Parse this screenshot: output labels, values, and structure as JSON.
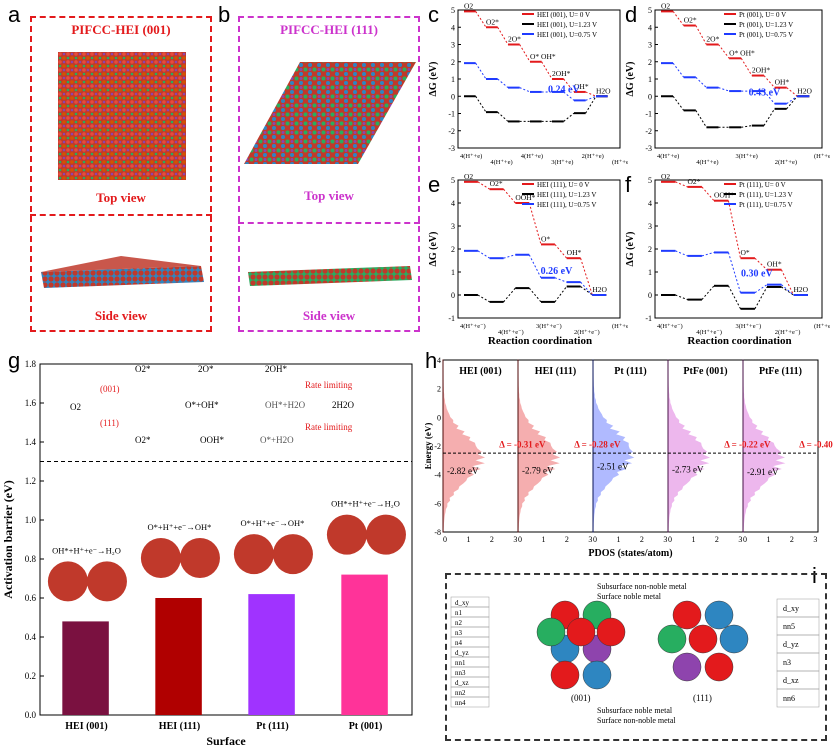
{
  "panel_letters": [
    "a",
    "b",
    "c",
    "d",
    "e",
    "f",
    "g",
    "h",
    "i"
  ],
  "colors": {
    "red": "#e31a1c",
    "magenta": "#cc33cc",
    "blue": "#1f3bff",
    "black": "#000000",
    "hei001": "#7a1140",
    "hei111": "#b00000",
    "pt111": "#a033ff",
    "pt001": "#ff3399"
  },
  "panel_a": {
    "title": "PIFCC-HEI (001)",
    "top": "Top view",
    "side": "Side view"
  },
  "panel_b": {
    "title": "PIFCC-HEI (111)",
    "top": "Top view",
    "side": "Side view"
  },
  "ylabel_dG": "ΔG (eV)",
  "xlabel_rc": "Reaction coordination",
  "chart_data": [
    {
      "id": "c",
      "type": "line",
      "legend": [
        "HEI (001), U= 0 V",
        "HEI (001), U=1.23 V",
        "HEI (001), U=0.75 V"
      ],
      "ylim": [
        -3,
        5
      ],
      "yticks": [
        "-3",
        "-2",
        "-1",
        "0",
        "1",
        "2",
        "3",
        "4",
        "5"
      ],
      "species": [
        "O2",
        "O2*",
        "2O*",
        "O* OH*",
        "2OH*",
        "OH*",
        "H2O"
      ],
      "series": [
        {
          "name": "HEI (001), U= 0 V",
          "values": [
            4.92,
            4.0,
            3.0,
            2.0,
            1.0,
            0.25,
            0.0
          ]
        },
        {
          "name": "HEI (001), U=1.23 V",
          "values": [
            0.0,
            -0.92,
            -1.46,
            -1.46,
            -1.46,
            -0.98,
            0.0
          ]
        },
        {
          "name": "HEI (001), U=0.75 V",
          "values": [
            1.92,
            1.0,
            0.5,
            0.25,
            0.25,
            -0.24,
            0.0
          ]
        }
      ],
      "annotation": "0.24 eV",
      "xticks": [
        "4(H⁺+e)",
        "4(H⁺+e)",
        "4(H⁺+e)",
        "3(H⁺+e)",
        "2(H⁺+e)",
        "(H⁺+e)"
      ]
    },
    {
      "id": "d",
      "type": "line",
      "legend": [
        "Pt (001), U= 0 V",
        "Pt (001), U=1.23 V",
        "Pt (001), U=0.75 V"
      ],
      "ylim": [
        -3,
        5
      ],
      "yticks": [
        "-3",
        "-2",
        "-1",
        "0",
        "1",
        "2",
        "3",
        "4",
        "5"
      ],
      "species": [
        "O2",
        "O2*",
        "2O*",
        "O* OH*",
        "2OH*",
        "OH*",
        "H2O"
      ],
      "series": [
        {
          "name": "Pt (001), U= 0 V",
          "values": [
            4.92,
            4.1,
            3.0,
            2.2,
            1.2,
            0.5,
            0.0
          ]
        },
        {
          "name": "Pt (001), U=1.23 V",
          "values": [
            0.0,
            -0.82,
            -1.8,
            -1.8,
            -1.7,
            -0.73,
            0.0
          ]
        },
        {
          "name": "Pt (001), U=0.75 V",
          "values": [
            1.92,
            1.1,
            0.5,
            0.3,
            0.3,
            -0.43,
            0.0
          ]
        }
      ],
      "annotation": "0.43 eV",
      "xticks": [
        "4(H⁺+e)",
        "4(H⁺+e)",
        "3(H⁺+e)",
        "2(H⁺+e)",
        "(H⁺+e)"
      ]
    },
    {
      "id": "e",
      "type": "line",
      "legend": [
        "HEI (111), U= 0 V",
        "HEI (111), U=1.23 V",
        "HEI (111), U=0.75 V"
      ],
      "ylim": [
        -1,
        5
      ],
      "yticks": [
        "-1",
        "0",
        "1",
        "2",
        "3",
        "4",
        "5"
      ],
      "species": [
        "O2",
        "O2*",
        "OOH*",
        "O*",
        "OH*",
        "H2O"
      ],
      "series": [
        {
          "name": "HEI (111), U= 0 V",
          "values": [
            4.92,
            4.6,
            4.0,
            2.2,
            1.6,
            0.0
          ]
        },
        {
          "name": "HEI (111), U=1.23 V",
          "values": [
            0.0,
            -0.3,
            0.3,
            -0.3,
            0.37,
            0.0
          ]
        },
        {
          "name": "HEI (111), U=0.75 V",
          "values": [
            1.92,
            1.6,
            1.75,
            0.75,
            0.56,
            0.0
          ]
        }
      ],
      "annotation": "0.26 eV",
      "xticks": [
        "4(H⁺+e⁻)",
        "4(H⁺+e⁻)",
        "3(H⁺+e⁻)",
        "2(H⁺+e⁻)",
        "(H⁺+e⁻)"
      ]
    },
    {
      "id": "f",
      "type": "line",
      "legend": [
        "Pt (111), U= 0 V",
        "Pt (111), U=1.23 V",
        "Pt (111), U=0.75 V"
      ],
      "ylim": [
        -1,
        5
      ],
      "yticks": [
        "-1",
        "0",
        "1",
        "2",
        "3",
        "4",
        "5"
      ],
      "species": [
        "O2",
        "O2*",
        "OOH*",
        "O*",
        "OH*",
        "H2O"
      ],
      "series": [
        {
          "name": "Pt (111), U= 0 V",
          "values": [
            4.92,
            4.7,
            4.1,
            1.6,
            1.1,
            0.0
          ]
        },
        {
          "name": "Pt (111), U=1.23 V",
          "values": [
            0.0,
            -0.2,
            0.4,
            -0.6,
            0.35,
            0.0
          ]
        },
        {
          "name": "Pt (111), U=0.75 V",
          "values": [
            1.92,
            1.7,
            1.85,
            0.1,
            0.45,
            0.0
          ]
        }
      ],
      "annotation": "0.30 eV",
      "xticks": [
        "4(H⁺+e⁻)",
        "4(H⁺+e⁻)",
        "3(H⁺+e⁻)",
        "2(H⁺+e⁻)",
        "(H⁺+e⁻)"
      ]
    },
    {
      "id": "g",
      "type": "bar",
      "categories": [
        "HEI (001)",
        "HEI (111)",
        "Pt (111)",
        "Pt (001)"
      ],
      "values": [
        0.48,
        0.6,
        0.62,
        0.72
      ],
      "ylim": [
        0,
        1.8
      ],
      "yticks": [
        "0.0",
        "0.2",
        "0.4",
        "0.6",
        "0.8",
        "1.0",
        "1.2",
        "1.4",
        "1.6",
        "1.8"
      ],
      "xlabel": "Surface",
      "ylabel": "Activation barrier (eV)",
      "bar_labels": [
        "OH*+H⁺+e⁻→H₂O",
        "O*+H⁺+e⁻→OH*",
        "O*+H⁺+e⁻→OH*",
        "OH*+H⁺+e⁻→H₂O"
      ],
      "scheme": {
        "o2": "O2",
        "p001": "(001)",
        "p111": "(111)",
        "o2s_a": "O2*",
        "o2s_b": "O2*",
        "two_o": "2O*",
        "o_oh": "O*+OH*",
        "two_oh": "2OH*",
        "oh_h2o": "OH*+H2O",
        "two_h2o": "2H2O",
        "ooh": "OOH*",
        "o_h2o": "O*+H2O",
        "rate1": "Rate limiting",
        "rate2": "Rate limiting"
      }
    },
    {
      "id": "h",
      "type": "area",
      "panels": [
        "HEI (001)",
        "HEI (111)",
        "Pt (111)",
        "PtFe (001)",
        "PtFe (111)"
      ],
      "centers": [
        -2.82,
        -2.79,
        -2.51,
        -2.73,
        -2.91
      ],
      "center_labels": [
        "-2.82 eV",
        "-2.79 eV",
        "-2.51 eV",
        "-2.73 eV",
        "-2.91 eV"
      ],
      "deltas": [
        "Δ = -0.31 eV",
        "Δ = -0.28 eV",
        "Δ = -0.22 eV",
        "Δ = -0.40 eV"
      ],
      "ylim": [
        -8,
        4
      ],
      "yticks": [
        "4",
        "2",
        "0",
        "-2",
        "-4",
        "-6",
        "-8"
      ],
      "xticks": [
        "0",
        "1",
        "2",
        "3"
      ],
      "xlabel": "PDOS (states/atom)",
      "ylabel": "Energy (eV)"
    }
  ],
  "panel_i": {
    "left_table": [
      "d_xy",
      "n1",
      "n2",
      "n3",
      "n4",
      "d_yz",
      "nn1",
      "nn3",
      "d_xz",
      "nn2",
      "nn4"
    ],
    "right_table": [
      "d_xy",
      "nn5",
      "d_yz",
      "n3",
      "d_xz",
      "nn6"
    ],
    "label_sub": "Subsurface non-noble metal",
    "label_surf": "Surface noble metal",
    "label_sub2": "Subsurface noble metal",
    "label_surf2": "Surface non-noble metal",
    "cap001": "(001)",
    "cap111": "(111)"
  }
}
